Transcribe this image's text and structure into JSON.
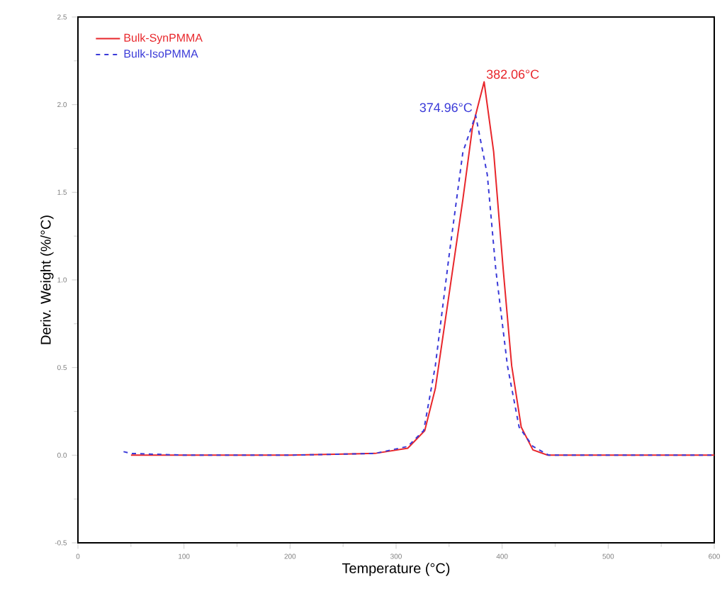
{
  "chart_data": {
    "type": "line",
    "xlabel": "Temperature (°C)",
    "ylabel": "Deriv. Weight (%/°C)",
    "xlim": [
      0,
      600
    ],
    "ylim": [
      -0.5,
      2.5
    ],
    "xticks": [
      0,
      100,
      200,
      300,
      400,
      500,
      600
    ],
    "yticks": [
      {
        "value": -0.5,
        "label": "-0.5"
      },
      {
        "value": 0,
        "label": "0.0"
      },
      {
        "value": 0.5,
        "label": "0.5"
      },
      {
        "value": 1,
        "label": "1.0"
      },
      {
        "value": 1.5,
        "label": "1.5"
      },
      {
        "value": 2,
        "label": "2.0"
      },
      {
        "value": 2.5,
        "label": "2.5"
      }
    ],
    "grid": false,
    "legend": "top left",
    "marker": "none",
    "series": [
      {
        "name": "Bulk-SynPMMA",
        "color": "#e8262b",
        "line_style": "solid",
        "x": [
          50,
          100,
          200,
          280,
          311,
          327,
          337,
          350,
          363,
          372,
          383,
          392,
          401,
          409,
          418,
          429,
          443,
          500,
          600
        ],
        "values": [
          0,
          0,
          0,
          0.01,
          0.04,
          0.14,
          0.38,
          0.92,
          1.46,
          1.87,
          2.13,
          1.73,
          1.06,
          0.51,
          0.16,
          0.03,
          0,
          0,
          0
        ]
      },
      {
        "name": "Bulk-IsoPMMA",
        "color": "#3a3ad8",
        "line_style": "dashed",
        "x": [
          43,
          50,
          100,
          200,
          280,
          311,
          326,
          337,
          350,
          363,
          375,
          386,
          394,
          405,
          416,
          429,
          444,
          500,
          600
        ],
        "values": [
          0.02,
          0.01,
          0,
          0,
          0.01,
          0.05,
          0.14,
          0.51,
          1.14,
          1.73,
          1.94,
          1.6,
          1.06,
          0.51,
          0.16,
          0.05,
          0,
          0,
          0
        ]
      }
    ],
    "annotations": [
      {
        "text": "382.06°C",
        "x": 382.06,
        "y": 2.13
      },
      {
        "text": "374.96°C",
        "x": 374.96,
        "y": 1.94
      }
    ]
  }
}
